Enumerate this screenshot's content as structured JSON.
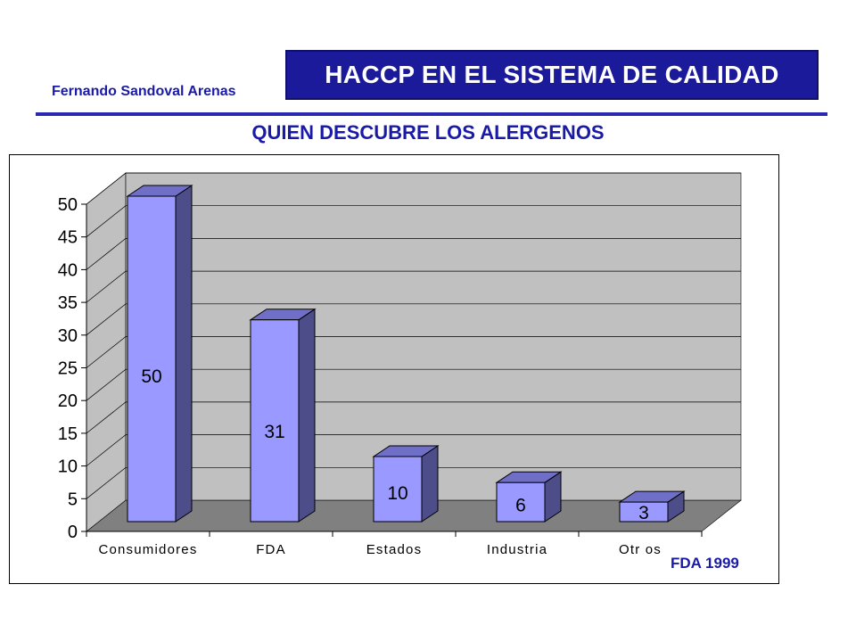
{
  "header": {
    "author": "Fernando Sandoval Arenas",
    "title": "HACCP EN EL SISTEMA DE CALIDAD",
    "subtitle": "QUIEN DESCUBRE LOS ALERGENOS"
  },
  "colors": {
    "title_bg": "#1a1a9a",
    "text_blue": "#1a1aa8",
    "bar_front": "#9999ff",
    "bar_side": "#4d4d8a",
    "bar_top": "#6f6fc8",
    "wall": "#c0c0c0",
    "floor": "#808080"
  },
  "chart_data": {
    "type": "bar",
    "categories": [
      "Consumidores",
      "FDA",
      "Estados",
      "Industria",
      "Otros"
    ],
    "values": [
      50,
      31,
      10,
      6,
      3
    ],
    "data_labels": [
      "50",
      "31",
      "10",
      "6",
      "3"
    ],
    "category_labels": [
      "Consumidores",
      "FDA",
      "Estados",
      "Industria",
      "Otr os"
    ],
    "yticks": [
      "0",
      "5",
      "10",
      "15",
      "20",
      "25",
      "30",
      "35",
      "40",
      "45",
      "50"
    ],
    "ylim": [
      0,
      50
    ],
    "grid": true,
    "three_d": true,
    "legend": "none",
    "source_note": "FDA 1999"
  }
}
